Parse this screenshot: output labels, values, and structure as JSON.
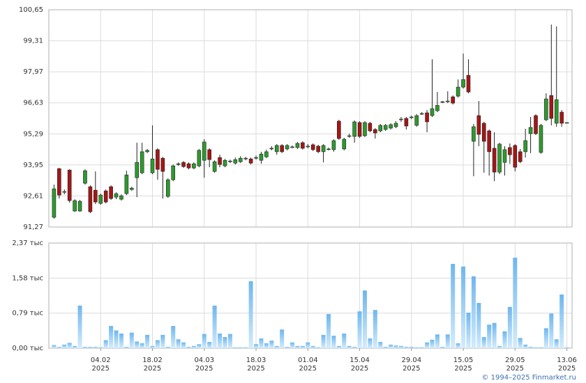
{
  "chart_data": [
    {
      "type": "candlestick",
      "xlim": [
        -1,
        100
      ],
      "ylim": [
        91.27,
        100.65
      ],
      "yticks": [
        {
          "value": 91.27,
          "label": "91,27"
        },
        {
          "value": 92.61,
          "label": "92,61"
        },
        {
          "value": 93.95,
          "label": "93,95"
        },
        {
          "value": 95.29,
          "label": "95,29"
        },
        {
          "value": 96.63,
          "label": "96,63"
        },
        {
          "value": 97.97,
          "label": "97,97"
        },
        {
          "value": 99.31,
          "label": "99,31"
        },
        {
          "value": 100.65,
          "label": "100,65"
        }
      ],
      "grid": true,
      "up_color": "#2e9a2e",
      "down_color": "#a51616",
      "open": [
        91.69,
        93.79,
        92.77,
        93.73,
        91.96,
        91.96,
        93.16,
        93.01,
        92.86,
        92.29,
        92.83,
        93.01,
        92.56,
        92.47,
        92.71,
        92.89,
        93.4,
        93.61,
        94.52,
        93.61,
        94.61,
        94.24,
        92.59,
        93.31,
        93.97,
        94.06,
        94.0,
        93.82,
        93.91,
        94.15,
        94.61,
        93.67,
        94.27,
        93.91,
        94.09,
        94.03,
        94.09,
        94.21,
        94.21,
        94.24,
        94.15,
        94.3,
        94.64,
        94.52,
        94.79,
        94.64,
        94.7,
        94.7,
        94.91,
        94.73,
        94.82,
        94.76,
        94.52,
        94.61,
        94.61,
        95.84,
        94.64,
        95.18,
        95.18,
        95.78,
        95.21,
        95.75,
        95.48,
        95.42,
        95.48,
        95.54,
        95.6,
        95.9,
        95.96,
        95.99,
        95.66,
        96.14,
        96.2,
        96.08,
        96.29,
        96.65,
        96.68,
        96.89,
        96.92,
        97.31,
        97.82,
        94.97,
        96.08,
        95.75,
        95.42,
        94.67,
        93.64,
        94.06,
        94.7,
        94.79,
        94.52,
        94.52,
        95.3,
        96.08,
        94.49,
        95.9,
        96.95,
        95.75,
        96.23,
        95.75
      ],
      "high": [
        93.1,
        93.82,
        92.89,
        93.76,
        92.47,
        92.44,
        93.76,
        93.07,
        93.67,
        92.71,
        92.89,
        93.07,
        92.77,
        92.68,
        93.7,
        93.01,
        94.91,
        94.91,
        94.64,
        95.66,
        94.67,
        94.3,
        93.37,
        93.97,
        94.06,
        94.12,
        94.06,
        94.06,
        94.64,
        95.06,
        94.67,
        94.15,
        94.39,
        94.21,
        94.18,
        94.27,
        94.33,
        94.3,
        94.27,
        94.36,
        94.52,
        94.61,
        94.76,
        94.85,
        94.85,
        94.85,
        94.79,
        94.94,
        94.97,
        94.85,
        94.88,
        94.82,
        94.85,
        94.7,
        95.06,
        95.9,
        95.12,
        95.3,
        95.87,
        95.84,
        95.84,
        95.81,
        95.54,
        95.72,
        95.72,
        95.75,
        95.84,
        96.02,
        96.02,
        96.08,
        96.14,
        96.23,
        96.32,
        98.51,
        97.1,
        96.71,
        97.13,
        96.95,
        97.64,
        98.76,
        98.51,
        95.72,
        96.71,
        95.81,
        95.48,
        95.36,
        94.91,
        94.76,
        94.88,
        94.85,
        94.64,
        95.51,
        96.02,
        96.14,
        95.72,
        97.04,
        100.01,
        99.93,
        96.32,
        95.78
      ],
      "low": [
        91.63,
        92.5,
        92.68,
        92.32,
        91.93,
        91.93,
        93.1,
        91.87,
        92.26,
        92.23,
        92.29,
        92.44,
        92.47,
        92.41,
        92.65,
        92.83,
        92.56,
        93.55,
        94.46,
        93.55,
        93.31,
        92.5,
        92.53,
        93.25,
        93.91,
        93.82,
        93.76,
        93.76,
        93.85,
        93.4,
        93.85,
        93.61,
        93.85,
        93.85,
        94.03,
        93.97,
        94.03,
        94.15,
        93.97,
        94.18,
        94.0,
        94.24,
        94.58,
        94.39,
        94.46,
        94.58,
        94.67,
        94.64,
        94.61,
        94.67,
        94.55,
        94.46,
        94.06,
        94.58,
        94.52,
        95.03,
        94.58,
        95.12,
        94.91,
        95.12,
        95.15,
        95.36,
        95.09,
        95.36,
        95.42,
        95.48,
        95.54,
        95.81,
        95.48,
        95.93,
        95.6,
        96.11,
        95.36,
        96.02,
        96.23,
        96.62,
        96.62,
        96.56,
        96.86,
        97.25,
        97.04,
        93.46,
        94.76,
        93.61,
        93.49,
        93.25,
        93.55,
        93.49,
        94.0,
        93.67,
        94.03,
        94.27,
        94.46,
        95.24,
        94.43,
        95.84,
        95.66,
        95.6,
        95.6,
        95.75
      ],
      "close": [
        92.92,
        92.65,
        92.8,
        92.41,
        92.41,
        92.38,
        93.7,
        91.93,
        92.35,
        92.65,
        92.35,
        92.5,
        92.71,
        92.62,
        93.52,
        92.95,
        94.06,
        94.52,
        94.58,
        94.21,
        93.76,
        93.67,
        93.31,
        93.91,
        94.0,
        93.88,
        93.82,
        94.0,
        94.58,
        94.94,
        94.18,
        94.09,
        93.97,
        94.15,
        94.12,
        94.18,
        94.24,
        94.24,
        94.03,
        94.27,
        94.42,
        94.52,
        94.67,
        94.79,
        94.52,
        94.79,
        94.73,
        94.88,
        94.67,
        94.76,
        94.61,
        94.52,
        94.79,
        94.64,
        95.0,
        95.09,
        95.06,
        95.21,
        95.81,
        95.18,
        95.78,
        95.42,
        95.33,
        95.66,
        95.66,
        95.69,
        95.75,
        95.93,
        95.63,
        96.02,
        96.08,
        96.17,
        95.81,
        96.38,
        96.52,
        96.68,
        96.71,
        96.62,
        97.31,
        97.64,
        97.1,
        95.6,
        95.27,
        94.97,
        94.52,
        93.64,
        94.85,
        94.61,
        94.39,
        93.85,
        94.09,
        95.0,
        95.57,
        95.3,
        95.66,
        96.8,
        95.96,
        96.77,
        95.75,
        95.78
      ]
    },
    {
      "type": "bar",
      "xlim": [
        -1,
        100
      ],
      "ylim": [
        0,
        2.37
      ],
      "yticks": [
        {
          "value": 0,
          "label": "0,00 тыс"
        },
        {
          "value": 0.79,
          "label": "0,79 тыс"
        },
        {
          "value": 1.58,
          "label": "1,58 тыс"
        },
        {
          "value": 2.37,
          "label": "2,37 тыс"
        }
      ],
      "grid": true,
      "color": "#8cc6f2",
      "xticks": [
        {
          "value": 9,
          "label": "04.02",
          "year": "2025"
        },
        {
          "value": 19,
          "label": "18.02",
          "year": "2025"
        },
        {
          "value": 29,
          "label": "04.03",
          "year": "2025"
        },
        {
          "value": 39,
          "label": "18.03",
          "year": "2025"
        },
        {
          "value": 49,
          "label": "01.04",
          "year": "2025"
        },
        {
          "value": 59,
          "label": "15.04",
          "year": "2025"
        },
        {
          "value": 69,
          "label": "29.04",
          "year": "2025"
        },
        {
          "value": 79,
          "label": "15.05",
          "year": "2025"
        },
        {
          "value": 89,
          "label": "29.05",
          "year": "2025"
        },
        {
          "value": 99,
          "label": "13.06",
          "year": "2025"
        }
      ],
      "values": [
        0.07,
        0.03,
        0.08,
        0.12,
        0.05,
        0.96,
        0.03,
        0.03,
        0.03,
        0.02,
        0.18,
        0.5,
        0.4,
        0.33,
        0.03,
        0.35,
        0.15,
        0.11,
        0.3,
        0.05,
        0.18,
        0.3,
        0.03,
        0.5,
        0.2,
        0.13,
        0.03,
        0.05,
        0.09,
        0.32,
        0.14,
        0.96,
        0.33,
        0.25,
        0.32,
        0.02,
        0.02,
        0.02,
        1.51,
        0.09,
        0.22,
        0.11,
        0.17,
        0.05,
        0.42,
        0.03,
        0.13,
        0.05,
        0.05,
        0.13,
        0.05,
        0.02,
        0.3,
        0.77,
        0.28,
        0.05,
        0.33,
        0.05,
        0.03,
        0.83,
        1.3,
        0.22,
        0.86,
        0.14,
        0.03,
        0.08,
        0.06,
        0.05,
        0.03,
        0.03,
        0.02,
        0.02,
        0.13,
        0.19,
        0.31,
        0.03,
        0.31,
        1.9,
        0.11,
        1.84,
        0.8,
        1.62,
        1.02,
        0.25,
        0.53,
        0.57,
        0.05,
        0.38,
        0.93,
        2.04,
        0.23,
        0.08,
        0.03,
        0.02,
        0.02,
        0.45,
        0.78,
        0.2,
        1.21,
        0.02
      ]
    }
  ],
  "footer": "© 1994–2025 Finmarket.ru"
}
